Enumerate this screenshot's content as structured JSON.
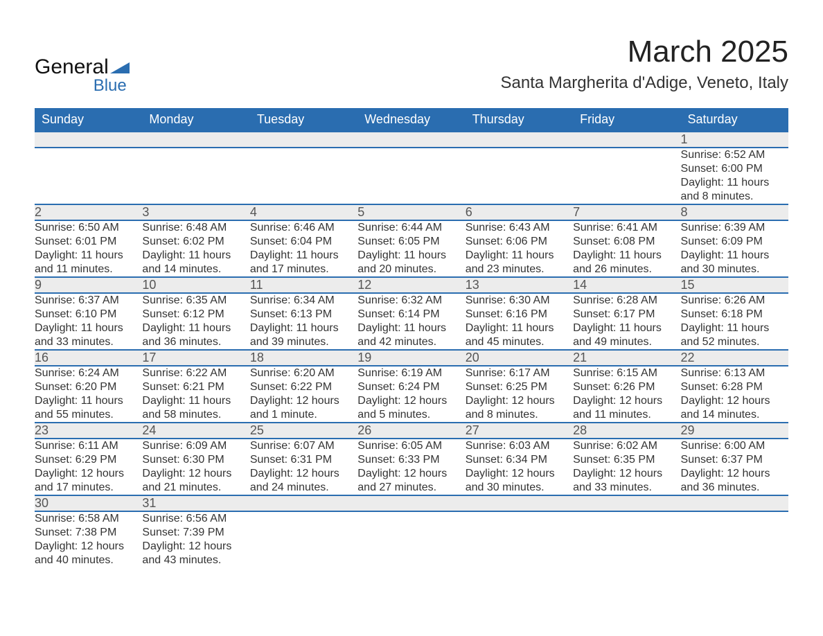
{
  "brand": {
    "name1": "General",
    "name2": "Blue",
    "logo_color": "#2a6db0"
  },
  "title": "March 2025",
  "location": "Santa Margherita d'Adige, Veneto, Italy",
  "colors": {
    "header_bg": "#2a6db0",
    "header_text": "#ffffff",
    "daynum_bg": "#ececec",
    "border": "#2a6db0",
    "text": "#333333"
  },
  "type": "table",
  "columns": [
    "Sunday",
    "Monday",
    "Tuesday",
    "Wednesday",
    "Thursday",
    "Friday",
    "Saturday"
  ],
  "weeks": [
    {
      "nums": [
        "",
        "",
        "",
        "",
        "",
        "",
        "1"
      ],
      "cells": [
        null,
        null,
        null,
        null,
        null,
        null,
        {
          "sunrise": "Sunrise: 6:52 AM",
          "sunset": "Sunset: 6:00 PM",
          "day1": "Daylight: 11 hours",
          "day2": "and 8 minutes."
        }
      ]
    },
    {
      "nums": [
        "2",
        "3",
        "4",
        "5",
        "6",
        "7",
        "8"
      ],
      "cells": [
        {
          "sunrise": "Sunrise: 6:50 AM",
          "sunset": "Sunset: 6:01 PM",
          "day1": "Daylight: 11 hours",
          "day2": "and 11 minutes."
        },
        {
          "sunrise": "Sunrise: 6:48 AM",
          "sunset": "Sunset: 6:02 PM",
          "day1": "Daylight: 11 hours",
          "day2": "and 14 minutes."
        },
        {
          "sunrise": "Sunrise: 6:46 AM",
          "sunset": "Sunset: 6:04 PM",
          "day1": "Daylight: 11 hours",
          "day2": "and 17 minutes."
        },
        {
          "sunrise": "Sunrise: 6:44 AM",
          "sunset": "Sunset: 6:05 PM",
          "day1": "Daylight: 11 hours",
          "day2": "and 20 minutes."
        },
        {
          "sunrise": "Sunrise: 6:43 AM",
          "sunset": "Sunset: 6:06 PM",
          "day1": "Daylight: 11 hours",
          "day2": "and 23 minutes."
        },
        {
          "sunrise": "Sunrise: 6:41 AM",
          "sunset": "Sunset: 6:08 PM",
          "day1": "Daylight: 11 hours",
          "day2": "and 26 minutes."
        },
        {
          "sunrise": "Sunrise: 6:39 AM",
          "sunset": "Sunset: 6:09 PM",
          "day1": "Daylight: 11 hours",
          "day2": "and 30 minutes."
        }
      ]
    },
    {
      "nums": [
        "9",
        "10",
        "11",
        "12",
        "13",
        "14",
        "15"
      ],
      "cells": [
        {
          "sunrise": "Sunrise: 6:37 AM",
          "sunset": "Sunset: 6:10 PM",
          "day1": "Daylight: 11 hours",
          "day2": "and 33 minutes."
        },
        {
          "sunrise": "Sunrise: 6:35 AM",
          "sunset": "Sunset: 6:12 PM",
          "day1": "Daylight: 11 hours",
          "day2": "and 36 minutes."
        },
        {
          "sunrise": "Sunrise: 6:34 AM",
          "sunset": "Sunset: 6:13 PM",
          "day1": "Daylight: 11 hours",
          "day2": "and 39 minutes."
        },
        {
          "sunrise": "Sunrise: 6:32 AM",
          "sunset": "Sunset: 6:14 PM",
          "day1": "Daylight: 11 hours",
          "day2": "and 42 minutes."
        },
        {
          "sunrise": "Sunrise: 6:30 AM",
          "sunset": "Sunset: 6:16 PM",
          "day1": "Daylight: 11 hours",
          "day2": "and 45 minutes."
        },
        {
          "sunrise": "Sunrise: 6:28 AM",
          "sunset": "Sunset: 6:17 PM",
          "day1": "Daylight: 11 hours",
          "day2": "and 49 minutes."
        },
        {
          "sunrise": "Sunrise: 6:26 AM",
          "sunset": "Sunset: 6:18 PM",
          "day1": "Daylight: 11 hours",
          "day2": "and 52 minutes."
        }
      ]
    },
    {
      "nums": [
        "16",
        "17",
        "18",
        "19",
        "20",
        "21",
        "22"
      ],
      "cells": [
        {
          "sunrise": "Sunrise: 6:24 AM",
          "sunset": "Sunset: 6:20 PM",
          "day1": "Daylight: 11 hours",
          "day2": "and 55 minutes."
        },
        {
          "sunrise": "Sunrise: 6:22 AM",
          "sunset": "Sunset: 6:21 PM",
          "day1": "Daylight: 11 hours",
          "day2": "and 58 minutes."
        },
        {
          "sunrise": "Sunrise: 6:20 AM",
          "sunset": "Sunset: 6:22 PM",
          "day1": "Daylight: 12 hours",
          "day2": "and 1 minute."
        },
        {
          "sunrise": "Sunrise: 6:19 AM",
          "sunset": "Sunset: 6:24 PM",
          "day1": "Daylight: 12 hours",
          "day2": "and 5 minutes."
        },
        {
          "sunrise": "Sunrise: 6:17 AM",
          "sunset": "Sunset: 6:25 PM",
          "day1": "Daylight: 12 hours",
          "day2": "and 8 minutes."
        },
        {
          "sunrise": "Sunrise: 6:15 AM",
          "sunset": "Sunset: 6:26 PM",
          "day1": "Daylight: 12 hours",
          "day2": "and 11 minutes."
        },
        {
          "sunrise": "Sunrise: 6:13 AM",
          "sunset": "Sunset: 6:28 PM",
          "day1": "Daylight: 12 hours",
          "day2": "and 14 minutes."
        }
      ]
    },
    {
      "nums": [
        "23",
        "24",
        "25",
        "26",
        "27",
        "28",
        "29"
      ],
      "cells": [
        {
          "sunrise": "Sunrise: 6:11 AM",
          "sunset": "Sunset: 6:29 PM",
          "day1": "Daylight: 12 hours",
          "day2": "and 17 minutes."
        },
        {
          "sunrise": "Sunrise: 6:09 AM",
          "sunset": "Sunset: 6:30 PM",
          "day1": "Daylight: 12 hours",
          "day2": "and 21 minutes."
        },
        {
          "sunrise": "Sunrise: 6:07 AM",
          "sunset": "Sunset: 6:31 PM",
          "day1": "Daylight: 12 hours",
          "day2": "and 24 minutes."
        },
        {
          "sunrise": "Sunrise: 6:05 AM",
          "sunset": "Sunset: 6:33 PM",
          "day1": "Daylight: 12 hours",
          "day2": "and 27 minutes."
        },
        {
          "sunrise": "Sunrise: 6:03 AM",
          "sunset": "Sunset: 6:34 PM",
          "day1": "Daylight: 12 hours",
          "day2": "and 30 minutes."
        },
        {
          "sunrise": "Sunrise: 6:02 AM",
          "sunset": "Sunset: 6:35 PM",
          "day1": "Daylight: 12 hours",
          "day2": "and 33 minutes."
        },
        {
          "sunrise": "Sunrise: 6:00 AM",
          "sunset": "Sunset: 6:37 PM",
          "day1": "Daylight: 12 hours",
          "day2": "and 36 minutes."
        }
      ]
    },
    {
      "nums": [
        "30",
        "31",
        "",
        "",
        "",
        "",
        ""
      ],
      "cells": [
        {
          "sunrise": "Sunrise: 6:58 AM",
          "sunset": "Sunset: 7:38 PM",
          "day1": "Daylight: 12 hours",
          "day2": "and 40 minutes."
        },
        {
          "sunrise": "Sunrise: 6:56 AM",
          "sunset": "Sunset: 7:39 PM",
          "day1": "Daylight: 12 hours",
          "day2": "and 43 minutes."
        },
        null,
        null,
        null,
        null,
        null
      ]
    }
  ]
}
